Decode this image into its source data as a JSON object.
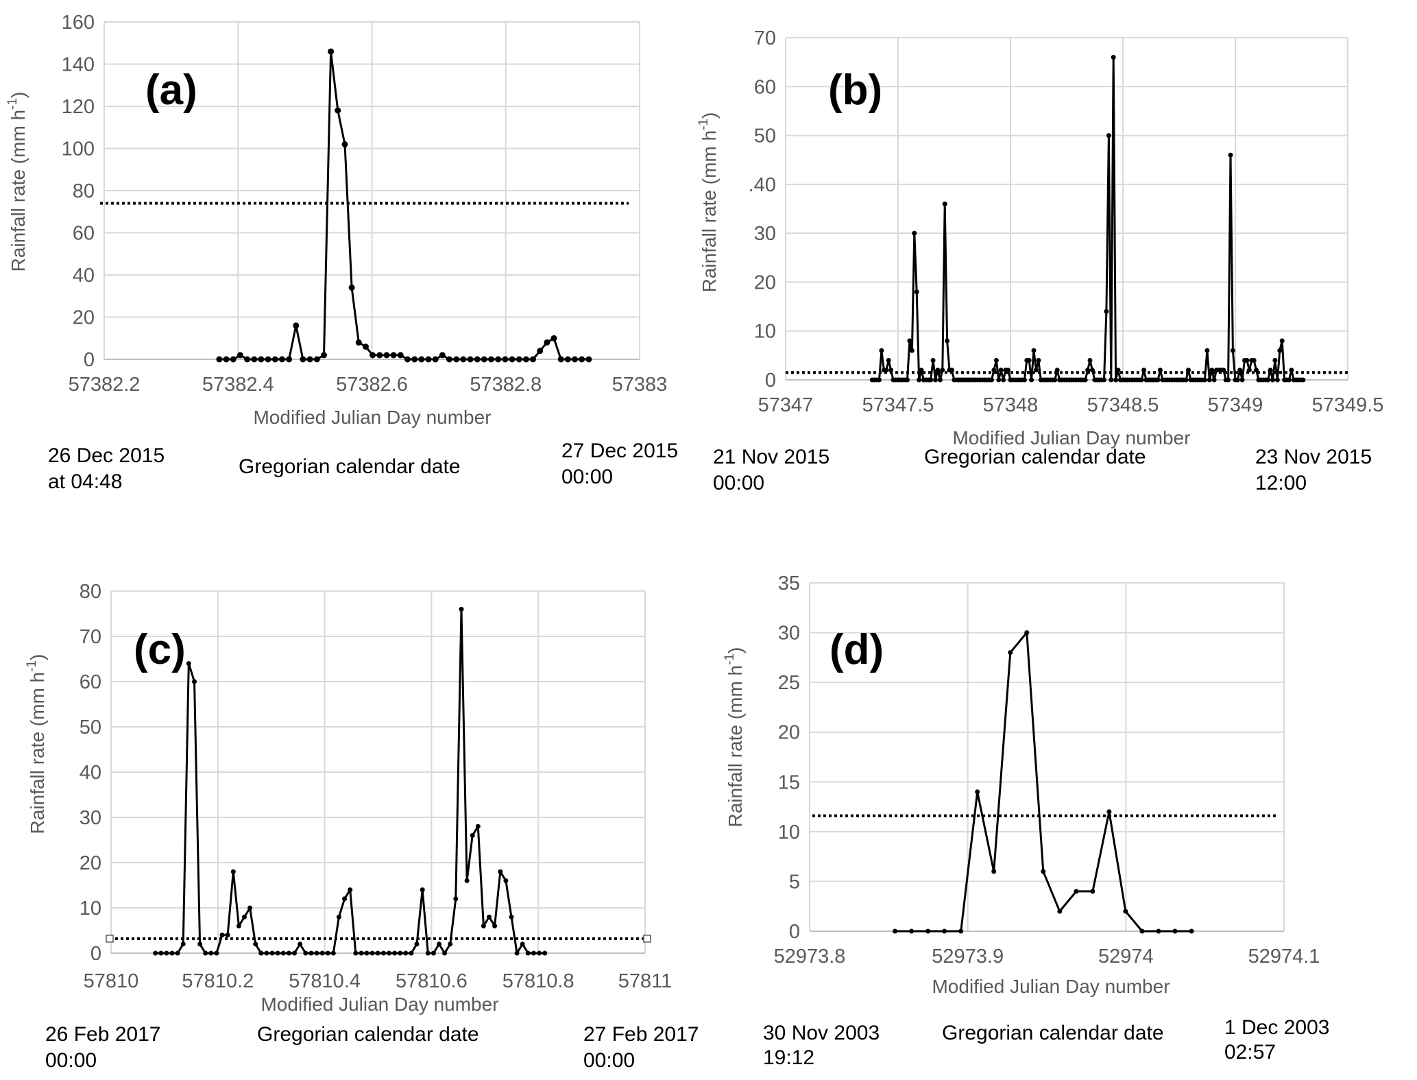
{
  "chart_data": [
    {
      "id": "a",
      "type": "line",
      "panel_label": "(a)",
      "xlabel": "Modified Julian Day number",
      "ylabel": "Rainfall rate (mm h",
      "ylabel_sup": "-1",
      "ylabel_close": ")",
      "xlim": [
        57382.2,
        57383
      ],
      "ylim": [
        0,
        160
      ],
      "xticks": [
        57382.2,
        57382.4,
        57382.6,
        57382.8,
        57383
      ],
      "xtick_labels": [
        "57382.2",
        "57382.4",
        "57382.6",
        "57382.8",
        "57383"
      ],
      "yticks": [
        0,
        20,
        40,
        60,
        80,
        100,
        120,
        140,
        160
      ],
      "ytick_labels": [
        "0",
        "20",
        "40",
        "60",
        "80",
        "100",
        "120",
        "140",
        "160"
      ],
      "grid": true,
      "threshold": 74,
      "threshold_style": "dotted",
      "series": [
        {
          "name": "rainfall rate",
          "x_start": 57382.372,
          "x_step": 0.0104167,
          "values": [
            0,
            0,
            0,
            2,
            0,
            0,
            0,
            0,
            0,
            0,
            0,
            16,
            0,
            0,
            0,
            2,
            146,
            118,
            102,
            34,
            8,
            6,
            2,
            2,
            2,
            2,
            2,
            0,
            0,
            0,
            0,
            0,
            2,
            0,
            0,
            0,
            0,
            0,
            0,
            0,
            0,
            0,
            0,
            0,
            0,
            0,
            4,
            8,
            10,
            0,
            0,
            0,
            0,
            0
          ]
        }
      ],
      "dates": {
        "start": [
          "26 Dec 2015",
          "at 04:48"
        ],
        "middle": "Gregorian calendar date",
        "end": [
          "27 Dec 2015",
          "00:00"
        ]
      }
    },
    {
      "id": "b",
      "type": "line",
      "panel_label": "(b)",
      "xlabel": "Modified Julian Day number",
      "ylabel": "Rainfall rate (mm h",
      "ylabel_sup": "-1",
      "ylabel_close": ")",
      "xlim": [
        57347,
        57349.5
      ],
      "ylim": [
        0,
        70
      ],
      "xticks": [
        57347,
        57347.5,
        57348,
        57348.5,
        57349,
        57349.5
      ],
      "xtick_labels": [
        "57347",
        "57347.5",
        "57348",
        "57348.5",
        "57349",
        "57349.5"
      ],
      "yticks": [
        0,
        10,
        20,
        30,
        40,
        50,
        60,
        70
      ],
      "ytick_labels": [
        "0",
        "10",
        "20",
        "30",
        ".40",
        "50",
        "60",
        "70"
      ],
      "grid": true,
      "threshold": 1.5,
      "threshold_style": "dotted",
      "series": [
        {
          "name": "rainfall rate",
          "x_start": 57347.385,
          "x_step": 0.0104167,
          "values": [
            0,
            0,
            0,
            0,
            6,
            2,
            2,
            4,
            2,
            0,
            0,
            0,
            0,
            0,
            0,
            0,
            8,
            6,
            30,
            18,
            0,
            2,
            0,
            0,
            0,
            0,
            4,
            0,
            2,
            0,
            2,
            36,
            8,
            2,
            2,
            0,
            0,
            0,
            0,
            0,
            0,
            0,
            0,
            0,
            0,
            0,
            0,
            0,
            0,
            0,
            0,
            0,
            2,
            4,
            0,
            2,
            0,
            2,
            2,
            0,
            0,
            0,
            0,
            0,
            0,
            0,
            4,
            4,
            0,
            6,
            2,
            4,
            0,
            0,
            0,
            0,
            0,
            0,
            0,
            2,
            0,
            0,
            0,
            0,
            0,
            0,
            0,
            0,
            0,
            0,
            0,
            0,
            2,
            4,
            2,
            0,
            0,
            0,
            0,
            0,
            14,
            50,
            0,
            66,
            0,
            2,
            0,
            0,
            0,
            0,
            0,
            0,
            0,
            0,
            0,
            0,
            2,
            0,
            0,
            0,
            0,
            0,
            0,
            2,
            0,
            0,
            0,
            0,
            0,
            0,
            0,
            0,
            0,
            0,
            0,
            2,
            0,
            0,
            0,
            0,
            0,
            0,
            0,
            6,
            0,
            2,
            0,
            2,
            2,
            2,
            2,
            0,
            0,
            46,
            6,
            0,
            0,
            2,
            0,
            4,
            4,
            2,
            4,
            4,
            2,
            0,
            0,
            0,
            0,
            0,
            2,
            0,
            4,
            0,
            6,
            8,
            0,
            0,
            0,
            2,
            0,
            0,
            0,
            0,
            0
          ]
        }
      ],
      "dates": {
        "start": [
          "21 Nov 2015",
          "00:00"
        ],
        "middle": "Gregorian calendar date",
        "end": [
          "23 Nov 2015",
          "12:00"
        ]
      }
    },
    {
      "id": "c",
      "type": "line",
      "panel_label": "(c)",
      "xlabel": "Modified Julian Day number",
      "ylabel": "Rainfall rate (mm h",
      "ylabel_sup": "-1",
      "ylabel_close": ")",
      "xlim": [
        57810,
        57811
      ],
      "ylim": [
        0,
        80
      ],
      "xticks": [
        57810,
        57810.2,
        57810.4,
        57810.6,
        57810.8,
        57811
      ],
      "xtick_labels": [
        "57810",
        "57810.2",
        "57810.4",
        "57810.6",
        "57810.8",
        "57811"
      ],
      "yticks": [
        0,
        10,
        20,
        30,
        40,
        50,
        60,
        70,
        80
      ],
      "ytick_labels": [
        "0",
        "10",
        "20",
        "30",
        "40",
        "50",
        "60",
        "70",
        "80"
      ],
      "grid": true,
      "threshold": 3.2,
      "threshold_style": "dotted",
      "threshold_end_markers": "open-square",
      "series": [
        {
          "name": "rainfall rate",
          "x_start": 57810.083,
          "x_step": 0.0104167,
          "values": [
            0,
            0,
            0,
            0,
            0,
            2,
            64,
            60,
            2,
            0,
            0,
            0,
            4,
            4,
            18,
            6,
            8,
            10,
            2,
            0,
            0,
            0,
            0,
            0,
            0,
            0,
            2,
            0,
            0,
            0,
            0,
            0,
            0,
            8,
            12,
            14,
            0,
            0,
            0,
            0,
            0,
            0,
            0,
            0,
            0,
            0,
            0,
            2,
            14,
            0,
            0,
            2,
            0,
            2,
            12,
            76,
            16,
            26,
            28,
            6,
            8,
            6,
            18,
            16,
            8,
            0,
            2,
            0,
            0,
            0,
            0
          ]
        }
      ],
      "dates": {
        "start": [
          "26 Feb 2017",
          "00:00"
        ],
        "middle": "Gregorian calendar date",
        "end": [
          "27 Feb 2017",
          "00:00"
        ]
      }
    },
    {
      "id": "d",
      "type": "line",
      "panel_label": "(d)",
      "xlabel": "Modified Julian Day number",
      "ylabel": "Rainfall rate (mm h",
      "ylabel_sup": "-1",
      "ylabel_close": ")",
      "xlim": [
        52973.8,
        52974.1
      ],
      "ylim": [
        0,
        35
      ],
      "xticks": [
        52973.8,
        52973.9,
        52974,
        52974.1
      ],
      "xtick_labels": [
        "52973.8",
        "52973.9",
        "52974",
        "52974.1"
      ],
      "yticks": [
        0,
        5,
        10,
        15,
        20,
        25,
        30,
        35
      ],
      "ytick_labels": [
        "0",
        "5",
        "10",
        "15",
        "20",
        "25",
        "30",
        "35"
      ],
      "grid": true,
      "threshold": 11.6,
      "threshold_style": "dotted",
      "series": [
        {
          "name": "rainfall rate",
          "x_start": 52973.854,
          "x_step": 0.0104167,
          "values": [
            0,
            0,
            0,
            0,
            0,
            14,
            6,
            28,
            30,
            6,
            2,
            4,
            4,
            12,
            2,
            0,
            0,
            0,
            0
          ]
        }
      ],
      "dates": {
        "start": [
          "30 Nov 2003",
          "19:12"
        ],
        "middle": "Gregorian calendar date",
        "end": [
          "1 Dec 2003",
          "02:57"
        ]
      }
    }
  ]
}
